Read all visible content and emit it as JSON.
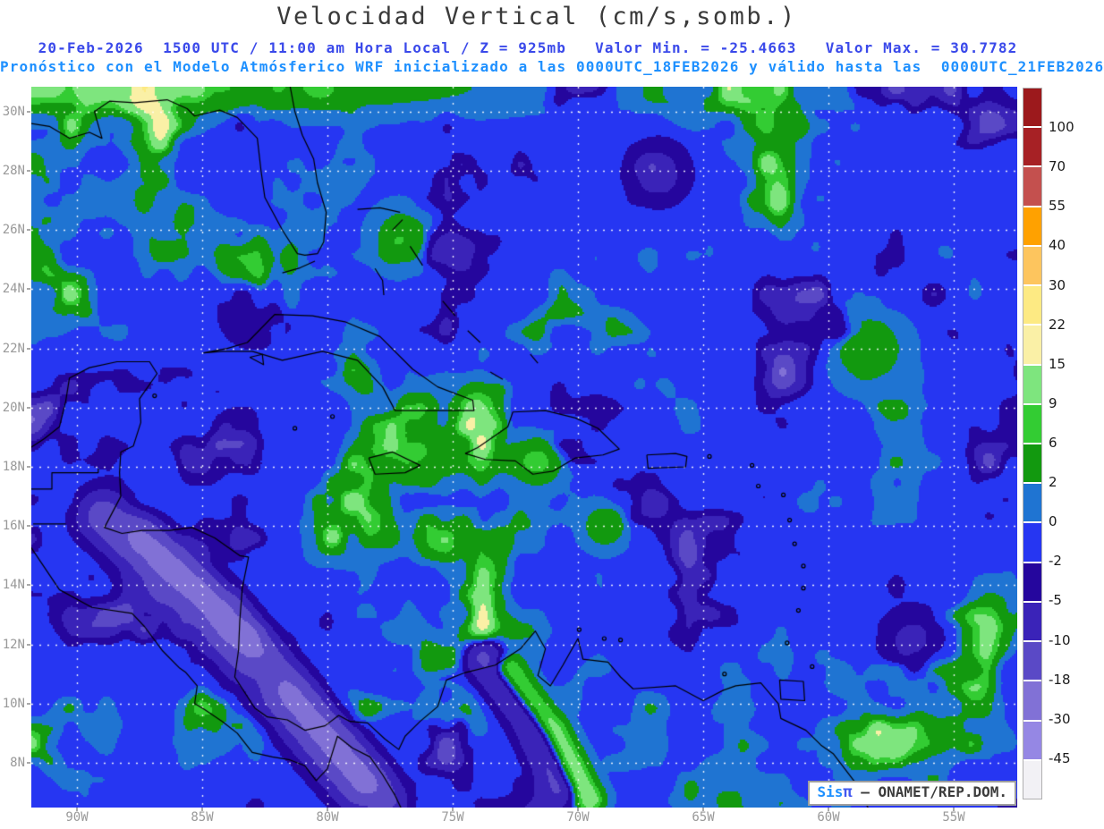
{
  "title": "Velocidad Vertical (cm/s,somb.)",
  "header": {
    "line1": "20-Feb-2026  1500 UTC / 11:00 am Hora Local / Z = 925mb   Valor Min. = -25.4663   Valor Max. = 30.7782",
    "line2": "Pronóstico con el Modelo Atmósferico WRF inicializado a las 0000UTC_18FEB2026 y válido hasta las  0000UTC_21FEB2026"
  },
  "axes": {
    "lat_ticks": [
      "30N",
      "28N",
      "26N",
      "24N",
      "22N",
      "20N",
      "18N",
      "16N",
      "14N",
      "12N",
      "10N",
      "8N"
    ],
    "lon_ticks": [
      "90W",
      "85W",
      "80W",
      "75W",
      "70W",
      "65W",
      "60W",
      "55W"
    ]
  },
  "colorbar": {
    "tick_labels": [
      "100",
      "70",
      "55",
      "40",
      "30",
      "22",
      "15",
      "9",
      "6",
      "2",
      "0",
      "-2",
      "-5",
      "-10",
      "-18",
      "-30",
      "-45"
    ],
    "segment_colors_top_to_bottom": [
      "#9c191c",
      "#a72125",
      "#c4504e",
      "#ffa100",
      "#fdc55e",
      "#fdea83",
      "#faf0a6",
      "#7ee57e",
      "#33cc33",
      "#12990f",
      "#1f74d2",
      "#2636f2",
      "#25069d",
      "#3a23b8",
      "#5a49c6",
      "#8171d6",
      "#9587e4",
      "#f2f1f5"
    ]
  },
  "logo": {
    "brand": "Sis",
    "pi": "π",
    "credit": "– ONAMET/REP.DOM."
  },
  "style": {
    "title_color": "#3a3a3a",
    "line1_color": "#3a49ea",
    "line2_color": "#1e90ff",
    "axis_label_color": "#999999",
    "grid_color": "#ffffff",
    "coastline_color": "#000000"
  }
}
